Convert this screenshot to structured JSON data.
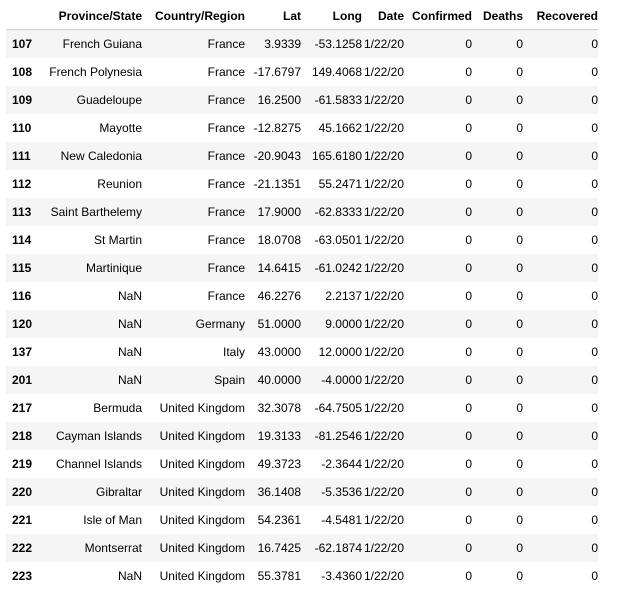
{
  "columns": [
    "",
    "Province/State",
    "Country/Region",
    "Lat",
    "Long",
    "Date",
    "Confirmed",
    "Deaths",
    "Recovered"
  ],
  "rows": [
    {
      "index": "107",
      "province": "French Guiana",
      "country": "France",
      "lat": "3.9339",
      "long": "-53.1258",
      "date": "1/22/20",
      "confirmed": "0",
      "deaths": "0",
      "recovered": "0"
    },
    {
      "index": "108",
      "province": "French Polynesia",
      "country": "France",
      "lat": "-17.6797",
      "long": "149.4068",
      "date": "1/22/20",
      "confirmed": "0",
      "deaths": "0",
      "recovered": "0"
    },
    {
      "index": "109",
      "province": "Guadeloupe",
      "country": "France",
      "lat": "16.2500",
      "long": "-61.5833",
      "date": "1/22/20",
      "confirmed": "0",
      "deaths": "0",
      "recovered": "0"
    },
    {
      "index": "110",
      "province": "Mayotte",
      "country": "France",
      "lat": "-12.8275",
      "long": "45.1662",
      "date": "1/22/20",
      "confirmed": "0",
      "deaths": "0",
      "recovered": "0"
    },
    {
      "index": "111",
      "province": "New Caledonia",
      "country": "France",
      "lat": "-20.9043",
      "long": "165.6180",
      "date": "1/22/20",
      "confirmed": "0",
      "deaths": "0",
      "recovered": "0"
    },
    {
      "index": "112",
      "province": "Reunion",
      "country": "France",
      "lat": "-21.1351",
      "long": "55.2471",
      "date": "1/22/20",
      "confirmed": "0",
      "deaths": "0",
      "recovered": "0"
    },
    {
      "index": "113",
      "province": "Saint Barthelemy",
      "country": "France",
      "lat": "17.9000",
      "long": "-62.8333",
      "date": "1/22/20",
      "confirmed": "0",
      "deaths": "0",
      "recovered": "0"
    },
    {
      "index": "114",
      "province": "St Martin",
      "country": "France",
      "lat": "18.0708",
      "long": "-63.0501",
      "date": "1/22/20",
      "confirmed": "0",
      "deaths": "0",
      "recovered": "0"
    },
    {
      "index": "115",
      "province": "Martinique",
      "country": "France",
      "lat": "14.6415",
      "long": "-61.0242",
      "date": "1/22/20",
      "confirmed": "0",
      "deaths": "0",
      "recovered": "0"
    },
    {
      "index": "116",
      "province": "NaN",
      "country": "France",
      "lat": "46.2276",
      "long": "2.2137",
      "date": "1/22/20",
      "confirmed": "0",
      "deaths": "0",
      "recovered": "0"
    },
    {
      "index": "120",
      "province": "NaN",
      "country": "Germany",
      "lat": "51.0000",
      "long": "9.0000",
      "date": "1/22/20",
      "confirmed": "0",
      "deaths": "0",
      "recovered": "0"
    },
    {
      "index": "137",
      "province": "NaN",
      "country": "Italy",
      "lat": "43.0000",
      "long": "12.0000",
      "date": "1/22/20",
      "confirmed": "0",
      "deaths": "0",
      "recovered": "0"
    },
    {
      "index": "201",
      "province": "NaN",
      "country": "Spain",
      "lat": "40.0000",
      "long": "-4.0000",
      "date": "1/22/20",
      "confirmed": "0",
      "deaths": "0",
      "recovered": "0"
    },
    {
      "index": "217",
      "province": "Bermuda",
      "country": "United Kingdom",
      "lat": "32.3078",
      "long": "-64.7505",
      "date": "1/22/20",
      "confirmed": "0",
      "deaths": "0",
      "recovered": "0"
    },
    {
      "index": "218",
      "province": "Cayman Islands",
      "country": "United Kingdom",
      "lat": "19.3133",
      "long": "-81.2546",
      "date": "1/22/20",
      "confirmed": "0",
      "deaths": "0",
      "recovered": "0"
    },
    {
      "index": "219",
      "province": "Channel Islands",
      "country": "United Kingdom",
      "lat": "49.3723",
      "long": "-2.3644",
      "date": "1/22/20",
      "confirmed": "0",
      "deaths": "0",
      "recovered": "0"
    },
    {
      "index": "220",
      "province": "Gibraltar",
      "country": "United Kingdom",
      "lat": "36.1408",
      "long": "-5.3536",
      "date": "1/22/20",
      "confirmed": "0",
      "deaths": "0",
      "recovered": "0"
    },
    {
      "index": "221",
      "province": "Isle of Man",
      "country": "United Kingdom",
      "lat": "54.2361",
      "long": "-4.5481",
      "date": "1/22/20",
      "confirmed": "0",
      "deaths": "0",
      "recovered": "0"
    },
    {
      "index": "222",
      "province": "Montserrat",
      "country": "United Kingdom",
      "lat": "16.7425",
      "long": "-62.1874",
      "date": "1/22/20",
      "confirmed": "0",
      "deaths": "0",
      "recovered": "0"
    },
    {
      "index": "223",
      "province": "NaN",
      "country": "United Kingdom",
      "lat": "55.3781",
      "long": "-3.4360",
      "date": "1/22/20",
      "confirmed": "0",
      "deaths": "0",
      "recovered": "0"
    }
  ]
}
